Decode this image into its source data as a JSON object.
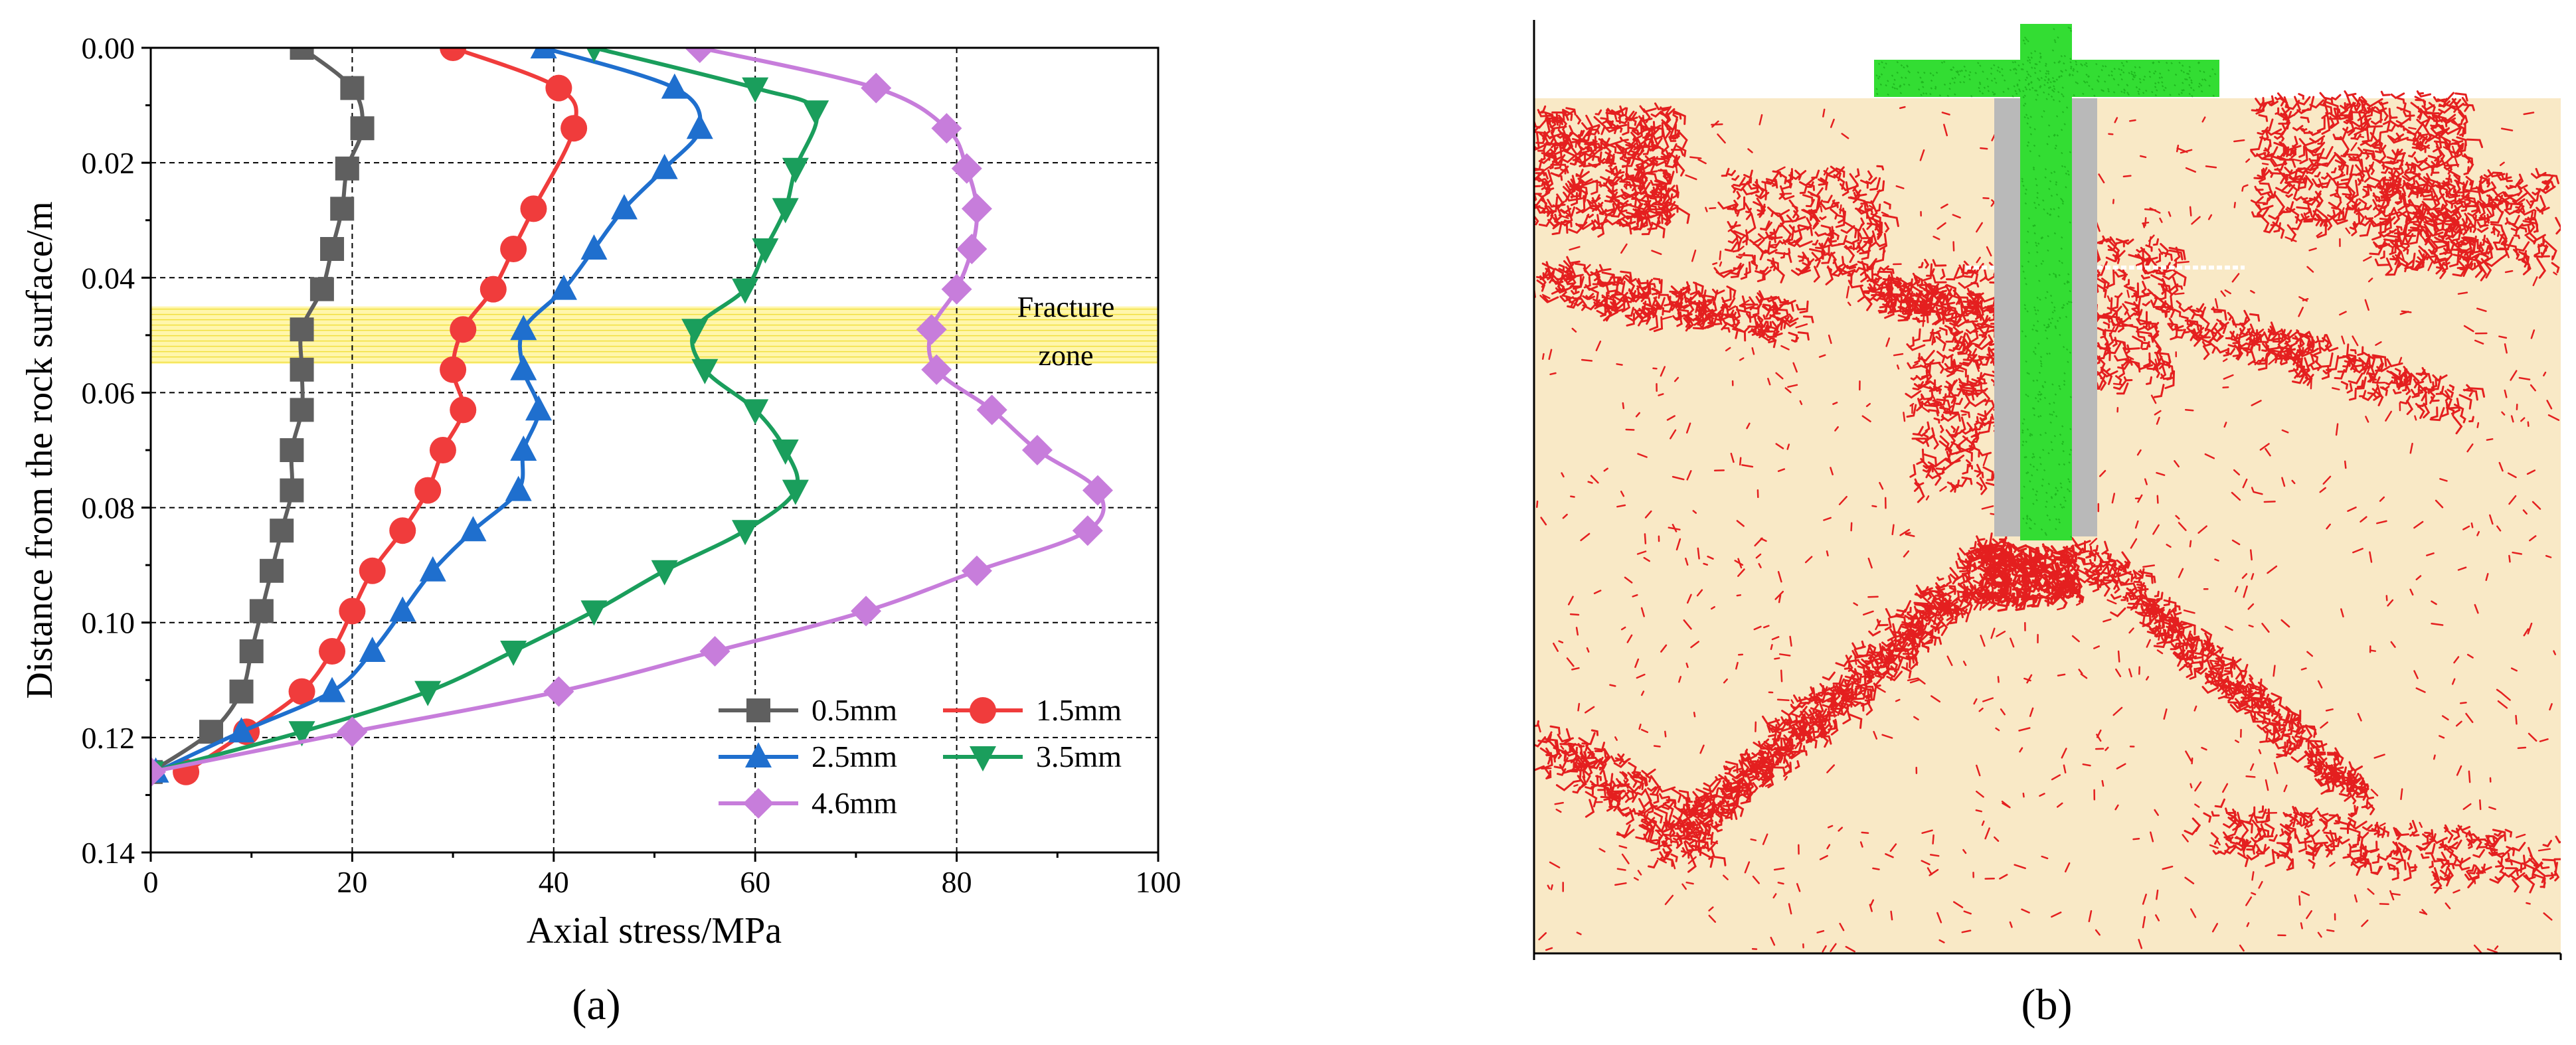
{
  "panels": {
    "a_label": "(a)",
    "b_label": "(b)"
  },
  "chart_data": {
    "type": "line",
    "title": "",
    "xlabel": "Axial stress/MPa",
    "ylabel": "Distance from the rock surface/m",
    "xlim": [
      0,
      100
    ],
    "ylim": [
      0.14,
      0.0
    ],
    "y_inverted": true,
    "xticks": [
      0,
      20,
      40,
      60,
      80,
      100
    ],
    "xtick_labels": [
      "0",
      "20",
      "40",
      "60",
      "80",
      "100"
    ],
    "yticks": [
      0.0,
      0.02,
      0.04,
      0.06,
      0.08,
      0.1,
      0.12,
      0.14
    ],
    "ytick_labels": [
      "0.00",
      "0.02",
      "0.04",
      "0.06",
      "0.08",
      "0.10",
      "0.12",
      "0.14"
    ],
    "grid": "dashed",
    "legend_position": "bottom-right",
    "shaded_band": {
      "y_range": [
        0.045,
        0.055
      ],
      "color": "#fff59d"
    },
    "annotation": {
      "line1": "Fracture",
      "line2": "zone"
    },
    "series": [
      {
        "name": "0.5mm",
        "color": "#5f5f5f",
        "marker": "square",
        "points": [
          [
            15,
            0.0
          ],
          [
            20,
            0.007
          ],
          [
            21,
            0.014
          ],
          [
            19.5,
            0.021
          ],
          [
            19,
            0.028
          ],
          [
            18,
            0.035
          ],
          [
            17,
            0.042
          ],
          [
            15,
            0.049
          ],
          [
            15,
            0.056
          ],
          [
            15,
            0.063
          ],
          [
            14,
            0.07
          ],
          [
            14,
            0.077
          ],
          [
            13,
            0.084
          ],
          [
            12,
            0.091
          ],
          [
            11,
            0.098
          ],
          [
            10,
            0.105
          ],
          [
            9,
            0.112
          ],
          [
            6,
            0.119
          ],
          [
            0,
            0.126
          ]
        ]
      },
      {
        "name": "1.5mm",
        "color": "#f03c3c",
        "marker": "circle",
        "points": [
          [
            30,
            0.0
          ],
          [
            40.5,
            0.007
          ],
          [
            42,
            0.014
          ],
          [
            38,
            0.028
          ],
          [
            36,
            0.035
          ],
          [
            34,
            0.042
          ],
          [
            31,
            0.049
          ],
          [
            30,
            0.056
          ],
          [
            31,
            0.063
          ],
          [
            29,
            0.07
          ],
          [
            27.5,
            0.077
          ],
          [
            25,
            0.084
          ],
          [
            22,
            0.091
          ],
          [
            20,
            0.098
          ],
          [
            18,
            0.105
          ],
          [
            15,
            0.112
          ],
          [
            9.5,
            0.119
          ],
          [
            3.5,
            0.126
          ]
        ]
      },
      {
        "name": "2.5mm",
        "color": "#1f6fce",
        "marker": "triangle-up",
        "points": [
          [
            39,
            0.0
          ],
          [
            52,
            0.007
          ],
          [
            54.5,
            0.014
          ],
          [
            51,
            0.021
          ],
          [
            47,
            0.028
          ],
          [
            44,
            0.035
          ],
          [
            41,
            0.042
          ],
          [
            37,
            0.049
          ],
          [
            37,
            0.056
          ],
          [
            38.5,
            0.063
          ],
          [
            37,
            0.07
          ],
          [
            36.5,
            0.077
          ],
          [
            32,
            0.084
          ],
          [
            28,
            0.091
          ],
          [
            25,
            0.098
          ],
          [
            22,
            0.105
          ],
          [
            18,
            0.112
          ],
          [
            9,
            0.119
          ],
          [
            0.5,
            0.126
          ]
        ]
      },
      {
        "name": "3.5mm",
        "color": "#1a9e5c",
        "marker": "triangle-down",
        "points": [
          [
            44,
            0.0
          ],
          [
            60,
            0.007
          ],
          [
            66,
            0.011
          ],
          [
            64,
            0.021
          ],
          [
            63,
            0.028
          ],
          [
            61,
            0.035
          ],
          [
            59,
            0.042
          ],
          [
            54,
            0.049
          ],
          [
            55,
            0.056
          ],
          [
            60,
            0.063
          ],
          [
            63,
            0.07
          ],
          [
            64,
            0.077
          ],
          [
            59,
            0.084
          ],
          [
            51,
            0.091
          ],
          [
            44,
            0.098
          ],
          [
            36,
            0.105
          ],
          [
            27.5,
            0.112
          ],
          [
            15,
            0.119
          ],
          [
            0,
            0.126
          ]
        ]
      },
      {
        "name": "4.6mm",
        "color": "#c77ddb",
        "marker": "diamond",
        "points": [
          [
            54.5,
            0.0
          ],
          [
            72,
            0.007
          ],
          [
            79,
            0.014
          ],
          [
            81,
            0.021
          ],
          [
            82,
            0.028
          ],
          [
            81.5,
            0.035
          ],
          [
            80,
            0.042
          ],
          [
            77.5,
            0.049
          ],
          [
            78,
            0.056
          ],
          [
            83.5,
            0.063
          ],
          [
            88,
            0.07
          ],
          [
            94,
            0.077
          ],
          [
            93,
            0.084
          ],
          [
            82,
            0.091
          ],
          [
            71,
            0.098
          ],
          [
            56,
            0.105
          ],
          [
            40.5,
            0.112
          ],
          [
            20,
            0.119
          ],
          [
            0,
            0.126
          ]
        ]
      }
    ]
  },
  "simulation_panel": {
    "description_colors": {
      "rock": "#f9e9c6",
      "crack": "#e41f1f",
      "bolt": "#33dd33",
      "grout": "#b9b9b9"
    }
  }
}
